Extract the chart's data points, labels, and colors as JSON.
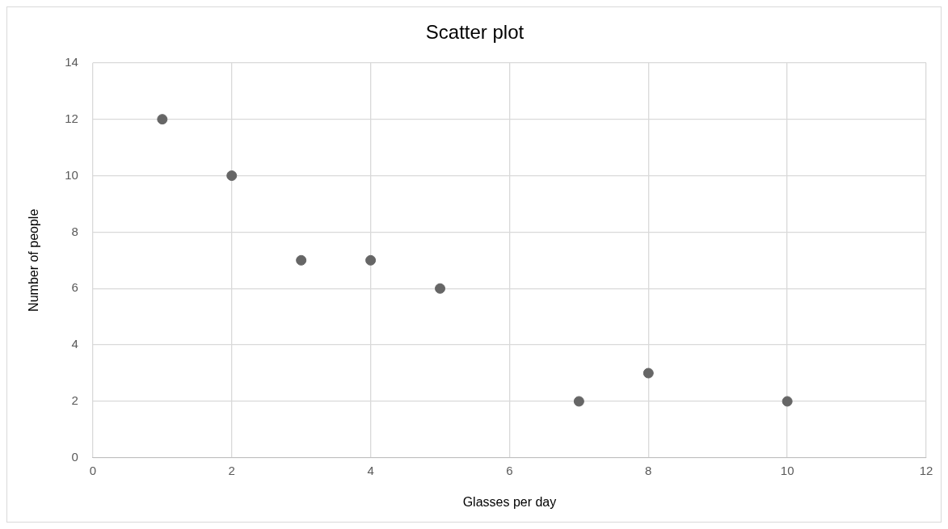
{
  "chart_data": {
    "type": "scatter",
    "title": "Scatter plot",
    "xlabel": "Glasses per day",
    "ylabel": "Number of people",
    "x": [
      1,
      2,
      3,
      4,
      5,
      7,
      8,
      10
    ],
    "series": [
      {
        "color": "#666666",
        "values": [
          12,
          10,
          7,
          7,
          6,
          2,
          3,
          2
        ]
      }
    ],
    "xlim": [
      0,
      12
    ],
    "xticks": [
      0,
      2,
      4,
      6,
      8,
      10,
      12
    ],
    "ylim": [
      0,
      14
    ],
    "yticks": [
      0,
      2,
      4,
      6,
      8,
      10,
      12,
      14
    ],
    "grid": true,
    "legend": false,
    "marker": "circle"
  }
}
